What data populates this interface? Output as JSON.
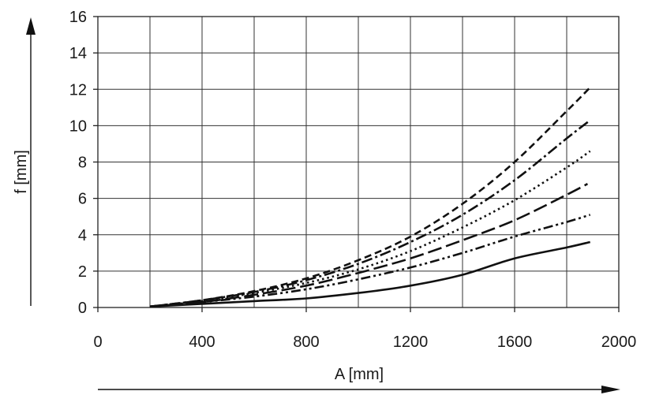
{
  "chart_data": {
    "type": "line",
    "xlabel": "A [mm]",
    "ylabel": "f [mm]",
    "xlim": [
      0,
      2000
    ],
    "ylim": [
      0,
      16
    ],
    "x_ticks": [
      0,
      400,
      800,
      1200,
      1600,
      2000
    ],
    "y_ticks": [
      0,
      2,
      4,
      6,
      8,
      10,
      12,
      14,
      16
    ],
    "x_tick_labels": [
      "0",
      "400",
      "800",
      "1200",
      "1600",
      "2000"
    ],
    "y_tick_labels": [
      "0",
      "2",
      "4",
      "6",
      "8",
      "10",
      "12",
      "14",
      "16"
    ],
    "grid": true,
    "series": [
      {
        "style": "dashed",
        "x": [
          200,
          400,
          600,
          800,
          1000,
          1200,
          1400,
          1600,
          1800,
          1890
        ],
        "y": [
          0.05,
          0.4,
          0.9,
          1.6,
          2.6,
          3.9,
          5.7,
          8.0,
          10.8,
          12.1
        ]
      },
      {
        "style": "dash-dot",
        "x": [
          200,
          400,
          600,
          800,
          1000,
          1200,
          1400,
          1600,
          1800,
          1890
        ],
        "y": [
          0.05,
          0.4,
          0.85,
          1.5,
          2.4,
          3.6,
          5.1,
          7.0,
          9.3,
          10.3
        ]
      },
      {
        "style": "dotted",
        "x": [
          200,
          400,
          600,
          800,
          1000,
          1200,
          1400,
          1600,
          1800,
          1890
        ],
        "y": [
          0.05,
          0.35,
          0.8,
          1.35,
          2.1,
          3.1,
          4.4,
          5.9,
          7.7,
          8.6
        ]
      },
      {
        "style": "long-dash",
        "x": [
          200,
          400,
          600,
          800,
          1000,
          1200,
          1400,
          1600,
          1800,
          1880
        ],
        "y": [
          0.05,
          0.3,
          0.7,
          1.2,
          1.9,
          2.7,
          3.7,
          4.8,
          6.2,
          6.8
        ]
      },
      {
        "style": "dash-dot-dot",
        "x": [
          200,
          400,
          600,
          800,
          1000,
          1200,
          1400,
          1600,
          1800,
          1890
        ],
        "y": [
          0.05,
          0.3,
          0.6,
          1.0,
          1.55,
          2.2,
          3.0,
          3.9,
          4.7,
          5.1
        ]
      },
      {
        "style": "solid",
        "x": [
          200,
          400,
          600,
          800,
          1000,
          1200,
          1400,
          1600,
          1800,
          1890
        ],
        "y": [
          0.05,
          0.2,
          0.35,
          0.5,
          0.8,
          1.2,
          1.8,
          2.7,
          3.3,
          3.6
        ]
      }
    ]
  }
}
